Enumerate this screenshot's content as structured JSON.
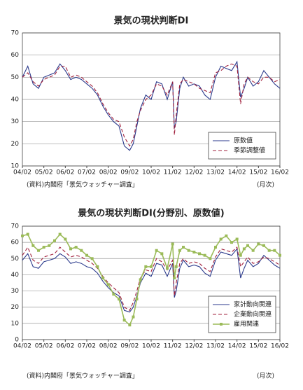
{
  "chart_data": [
    {
      "type": "line",
      "title": "景気の現状判断DI",
      "source": "(資料)内閣府「景気ウォッチャー調査」",
      "x_unit": "(月次)",
      "x": [
        0,
        3,
        6,
        9,
        12,
        15,
        18,
        21,
        24,
        27,
        30,
        33,
        36,
        39,
        42,
        45,
        48,
        51,
        54,
        57,
        60,
        62,
        64,
        66,
        69,
        72,
        75,
        78,
        81,
        84,
        85,
        86,
        88,
        90,
        93,
        96,
        99,
        102,
        105,
        108,
        111,
        114,
        117,
        120,
        122,
        124,
        126,
        129,
        132,
        135,
        138,
        141,
        144
      ],
      "xlim": [
        0,
        144
      ],
      "xticks": [
        {
          "value": 0,
          "label": "04/02"
        },
        {
          "value": 12,
          "label": "05/02"
        },
        {
          "value": 24,
          "label": "06/02"
        },
        {
          "value": 36,
          "label": "07/02"
        },
        {
          "value": 48,
          "label": "08/02"
        },
        {
          "value": 60,
          "label": "09/02"
        },
        {
          "value": 72,
          "label": "10/02"
        },
        {
          "value": 84,
          "label": "11/02"
        },
        {
          "value": 96,
          "label": "12/02"
        },
        {
          "value": 108,
          "label": "13/02"
        },
        {
          "value": 120,
          "label": "14/02"
        },
        {
          "value": 132,
          "label": "15/02"
        },
        {
          "value": 144,
          "label": "16/02"
        }
      ],
      "ylim": [
        10,
        70
      ],
      "yticks": [
        10,
        20,
        30,
        40,
        50,
        60,
        70
      ],
      "grid": true,
      "legend": "lower-right",
      "series": [
        {
          "name": "原数値",
          "color": "#2b3a8c",
          "dash": false,
          "values": [
            50,
            55,
            47,
            45,
            50,
            51,
            52,
            56,
            53,
            49,
            50,
            49,
            47,
            45,
            42,
            37,
            33,
            30,
            28,
            19,
            17,
            20,
            28,
            36,
            42,
            40,
            48,
            47,
            40,
            48,
            27,
            30,
            45,
            50,
            46,
            47,
            46,
            42,
            40,
            50,
            55,
            54,
            53,
            57,
            41,
            45,
            50,
            46,
            48,
            53,
            50,
            47,
            45
          ]
        },
        {
          "name": "季節調整値",
          "color": "#a0203c",
          "dash": true,
          "values": [
            50,
            52,
            48,
            46,
            49,
            50,
            51,
            55,
            55,
            50,
            51,
            50,
            48,
            46,
            43,
            38,
            34,
            31,
            30,
            23,
            19,
            22,
            30,
            35,
            40,
            42,
            47,
            46,
            42,
            48,
            24,
            33,
            47,
            49,
            48,
            47,
            45,
            44,
            43,
            52,
            53,
            55,
            56,
            55,
            38,
            47,
            50,
            48,
            47,
            50,
            50,
            48,
            49
          ]
        }
      ]
    },
    {
      "type": "line",
      "title": "景気の現状判断DI(分野別、原数値)",
      "source": "(資料)内閣府「景気ウォッチャー調査」",
      "x_unit": "(月次)",
      "x": [
        0,
        3,
        6,
        9,
        12,
        15,
        18,
        21,
        24,
        27,
        30,
        33,
        36,
        39,
        42,
        45,
        48,
        51,
        54,
        57,
        60,
        62,
        64,
        66,
        69,
        72,
        75,
        78,
        81,
        84,
        85,
        86,
        88,
        90,
        93,
        96,
        99,
        102,
        105,
        108,
        111,
        114,
        117,
        120,
        122,
        124,
        126,
        129,
        132,
        135,
        138,
        141,
        144
      ],
      "xlim": [
        0,
        144
      ],
      "xticks": [
        {
          "value": 0,
          "label": "04/02"
        },
        {
          "value": 12,
          "label": "05/02"
        },
        {
          "value": 24,
          "label": "06/02"
        },
        {
          "value": 36,
          "label": "07/02"
        },
        {
          "value": 48,
          "label": "08/02"
        },
        {
          "value": 60,
          "label": "09/02"
        },
        {
          "value": 72,
          "label": "10/02"
        },
        {
          "value": 84,
          "label": "11/02"
        },
        {
          "value": 96,
          "label": "12/02"
        },
        {
          "value": 108,
          "label": "13/02"
        },
        {
          "value": 120,
          "label": "14/02"
        },
        {
          "value": 132,
          "label": "15/02"
        },
        {
          "value": 144,
          "label": "16/02"
        }
      ],
      "ylim": [
        0,
        70
      ],
      "yticks": [
        0,
        10,
        20,
        30,
        40,
        50,
        60,
        70
      ],
      "grid": true,
      "legend": "lower-right",
      "series": [
        {
          "name": "家計動向関連",
          "color": "#2b3a8c",
          "dash": false,
          "values": [
            49,
            53,
            45,
            44,
            48,
            49,
            50,
            53,
            51,
            47,
            48,
            47,
            45,
            44,
            41,
            36,
            32,
            29,
            27,
            18,
            17,
            20,
            27,
            35,
            41,
            39,
            47,
            46,
            39,
            47,
            26,
            30,
            44,
            49,
            45,
            46,
            45,
            41,
            39,
            49,
            54,
            53,
            52,
            56,
            38,
            44,
            49,
            45,
            47,
            52,
            49,
            46,
            44
          ]
        },
        {
          "name": "企業動向関連",
          "color": "#a0203c",
          "dash": true,
          "values": [
            52,
            57,
            49,
            47,
            51,
            52,
            53,
            57,
            54,
            51,
            52,
            51,
            49,
            47,
            44,
            39,
            35,
            32,
            29,
            20,
            18,
            23,
            30,
            38,
            43,
            42,
            50,
            48,
            43,
            49,
            27,
            35,
            47,
            50,
            47,
            48,
            47,
            44,
            42,
            51,
            56,
            55,
            54,
            57,
            45,
            48,
            51,
            47,
            48,
            51,
            50,
            48,
            46
          ]
        },
        {
          "name": "雇用関連",
          "color": "#9bbb59",
          "dash": false,
          "marker": "square",
          "values": [
            64,
            65,
            58,
            55,
            57,
            58,
            61,
            65,
            62,
            56,
            57,
            55,
            52,
            50,
            45,
            38,
            34,
            28,
            25,
            12,
            9,
            14,
            25,
            37,
            45,
            45,
            55,
            53,
            44,
            59,
            38,
            45,
            55,
            57,
            55,
            54,
            53,
            52,
            50,
            57,
            62,
            64,
            60,
            62,
            52,
            56,
            58,
            55,
            59,
            58,
            55,
            55,
            52
          ]
        }
      ]
    }
  ]
}
